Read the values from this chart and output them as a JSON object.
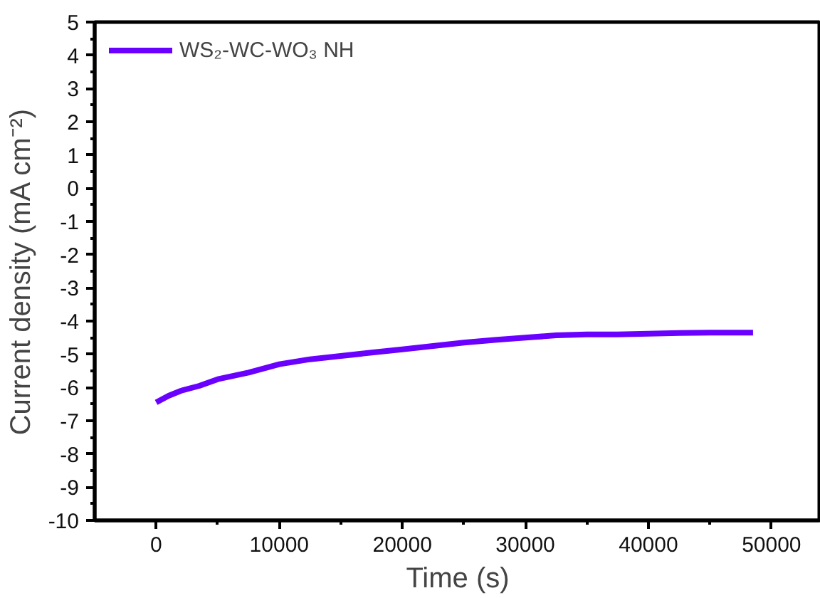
{
  "chart_data": {
    "type": "line",
    "xlabel": "Time (s)",
    "ylabel": "Current density (mA cm⁻²)",
    "x": [
      0,
      1000,
      2000,
      3500,
      5000,
      7500,
      10000,
      12500,
      15000,
      17500,
      20000,
      22500,
      25000,
      27500,
      30000,
      32500,
      35000,
      37500,
      40000,
      42500,
      45000,
      47500,
      48500
    ],
    "series": [
      {
        "name": "WS₂-WC-WO₃ NH",
        "color": "#6a00ff",
        "values": [
          -6.45,
          -6.25,
          -6.1,
          -5.95,
          -5.75,
          -5.55,
          -5.3,
          -5.15,
          -5.05,
          -4.95,
          -4.85,
          -4.75,
          -4.65,
          -4.57,
          -4.5,
          -4.43,
          -4.4,
          -4.4,
          -4.38,
          -4.36,
          -4.35,
          -4.35,
          -4.35
        ]
      }
    ],
    "xlim": [
      -5000,
      54000
    ],
    "ylim": [
      -10,
      5
    ],
    "xticks": [
      0,
      10000,
      20000,
      30000,
      40000,
      50000
    ],
    "yticks": [
      -10,
      -9,
      -8,
      -7,
      -6,
      -5,
      -4,
      -3,
      -2,
      -1,
      0,
      1,
      2,
      3,
      4,
      5
    ],
    "grid": false,
    "legend": "top left"
  }
}
